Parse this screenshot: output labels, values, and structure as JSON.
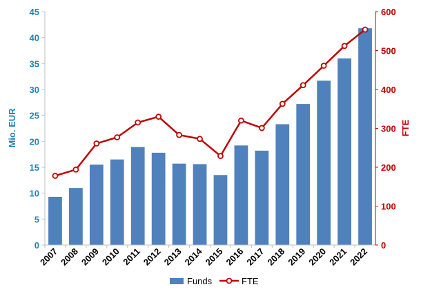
{
  "colors": {
    "funds_bar": "#4f81bd",
    "fte_line": "#c00000",
    "left_axis": "#1f82c0",
    "right_axis": "#c00000",
    "grid": "#d9d9d9"
  },
  "chart_data": {
    "type": "bar",
    "categories": [
      "2007",
      "2008",
      "2009",
      "2010",
      "2011",
      "2012",
      "2013",
      "2014",
      "2015",
      "2016",
      "2017",
      "2018",
      "2019",
      "2020",
      "2021",
      "2022"
    ],
    "series": [
      {
        "name": "Funds",
        "type": "bar",
        "axis": "left",
        "values": [
          9.3,
          11.0,
          15.5,
          16.5,
          18.9,
          17.8,
          15.7,
          15.6,
          13.5,
          19.2,
          18.2,
          23.3,
          27.2,
          31.7,
          36.0,
          41.8
        ]
      },
      {
        "name": "FTE",
        "type": "line",
        "axis": "right",
        "values": [
          178,
          194,
          261,
          277,
          315,
          330,
          283,
          273,
          229,
          320,
          301,
          363,
          411,
          461,
          512,
          554
        ]
      }
    ],
    "ylabel": "Mio. EUR",
    "ylim": [
      0,
      45
    ],
    "yticks": [
      "0",
      "5",
      "10",
      "15",
      "20",
      "25",
      "30",
      "35",
      "40",
      "45"
    ],
    "y2label": "FTE",
    "y2lim": [
      0,
      600
    ],
    "y2ticks": [
      "0",
      "100",
      "200",
      "300",
      "400",
      "500",
      "600"
    ],
    "grid": false,
    "legend_position": "bottom"
  }
}
